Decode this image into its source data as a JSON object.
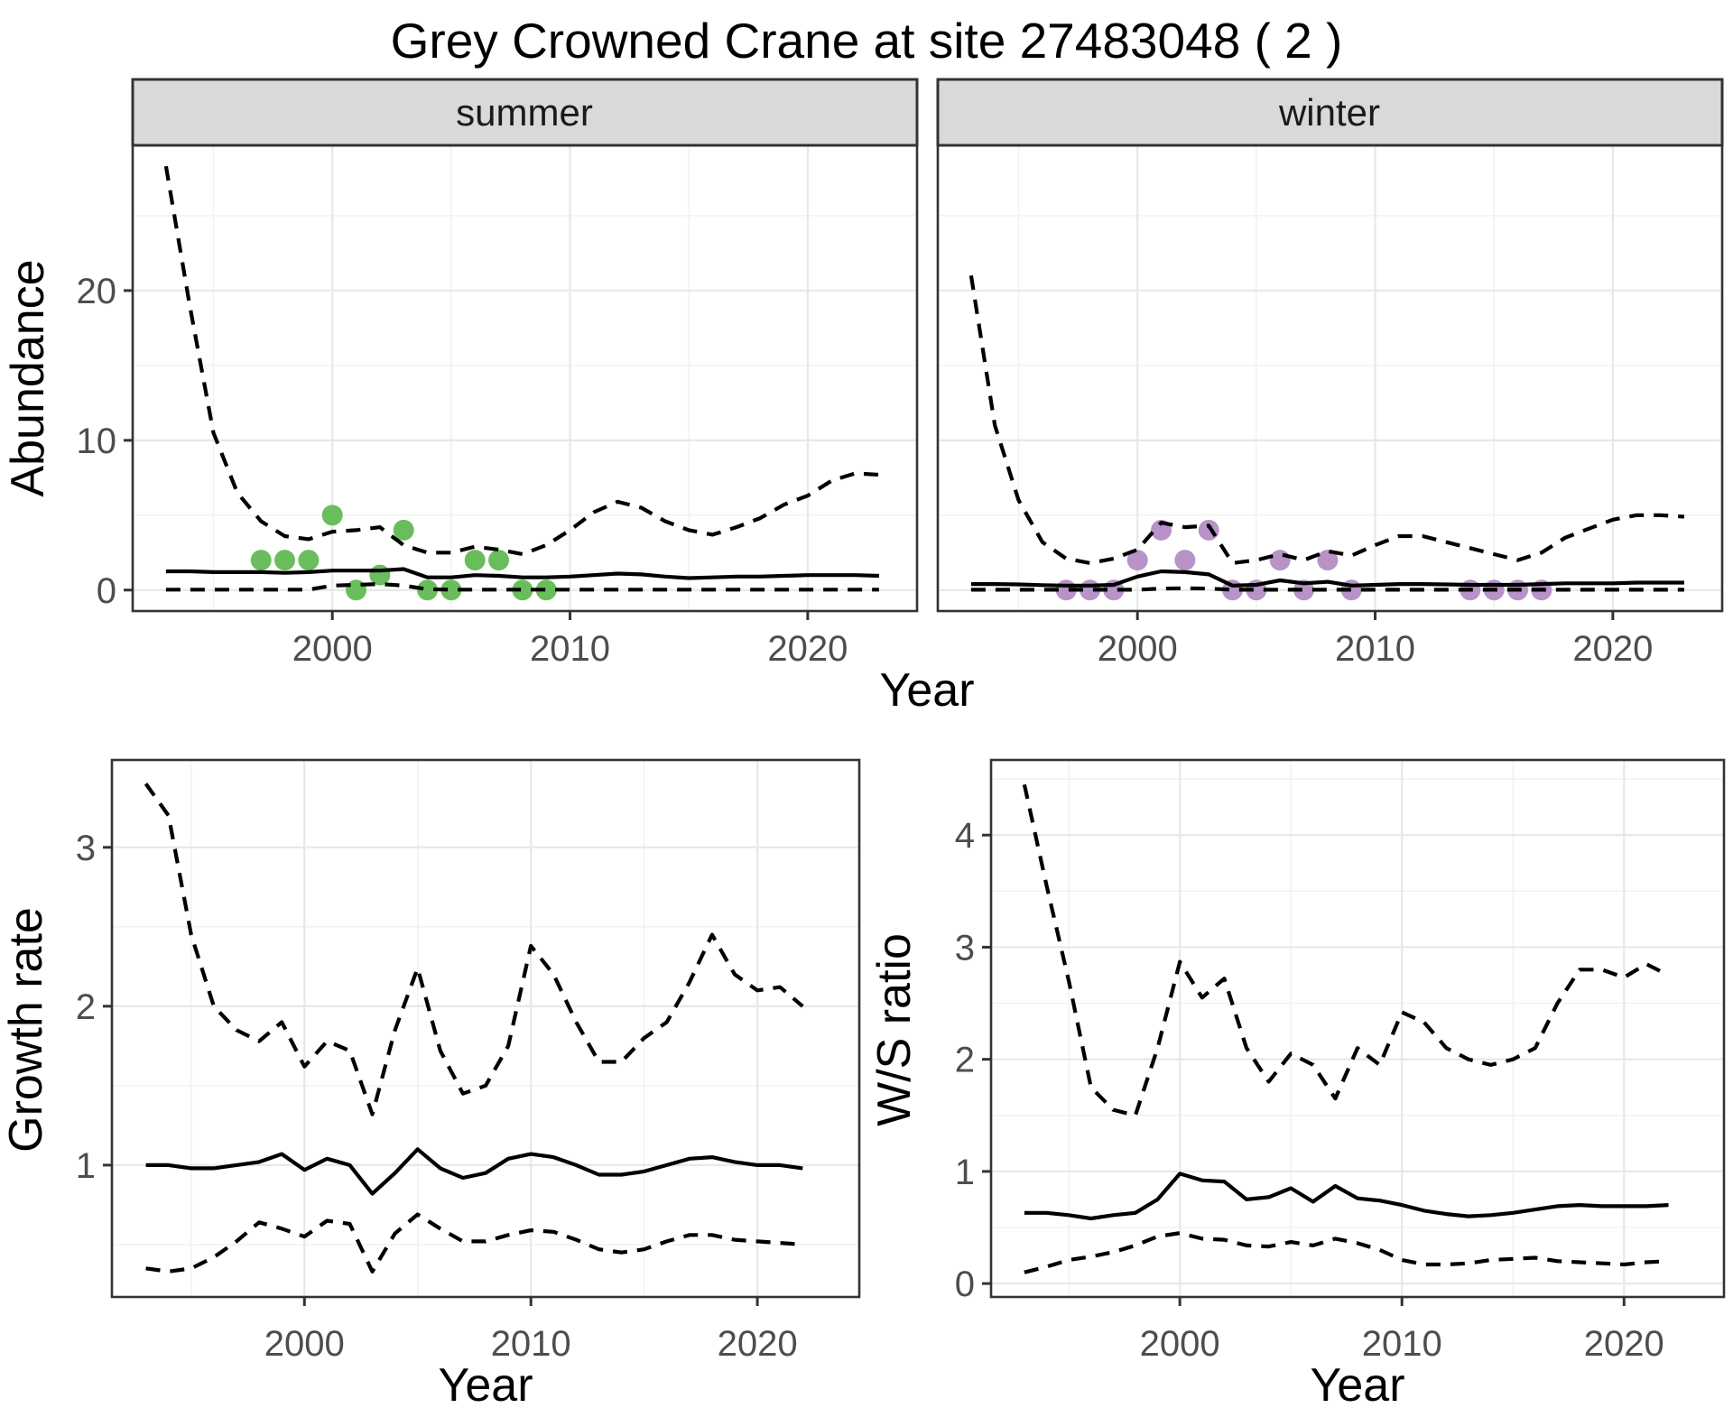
{
  "title": "Grey Crowned Crane at site 27483048 ( 2 )",
  "labels": {
    "y_abundance": "Abundance",
    "y_growth": "Growth rate",
    "y_ws": "W/S ratio",
    "x_year": "Year",
    "strip_summer": "summer",
    "strip_winter": "winter"
  },
  "theme": {
    "summer_point_color": "#6ABD5C",
    "winter_point_color": "#B793C8",
    "line_color": "#000000",
    "strip_fill": "#D9D9D9",
    "grid_major_color": "#E8E8E8",
    "grid_minor_color": "#F1F1F1",
    "axis_color": "#333333",
    "tick_label_color": "#4D4D4D",
    "panel_bg": "#FFFFFF"
  },
  "chart_data": [
    {
      "id": "abundance-summer",
      "type": "line",
      "facet": "summer",
      "ylabel": "Abundance",
      "xlabel": "Year",
      "x": [
        1993,
        1994,
        1995,
        1996,
        1997,
        1998,
        1999,
        2000,
        2001,
        2002,
        2003,
        2004,
        2005,
        2006,
        2007,
        2008,
        2009,
        2010,
        2011,
        2012,
        2013,
        2014,
        2015,
        2016,
        2017,
        2018,
        2019,
        2020,
        2021,
        2022,
        2023
      ],
      "series": [
        {
          "name": "ci-upper",
          "style": "dashed",
          "values": [
            28.3,
            19,
            10.5,
            6.5,
            4.6,
            3.6,
            3.4,
            3.9,
            4.0,
            4.2,
            3.0,
            2.5,
            2.5,
            2.9,
            2.7,
            2.4,
            3.0,
            4.0,
            5.2,
            5.9,
            5.5,
            4.6,
            4.0,
            3.7,
            4.2,
            4.8,
            5.7,
            6.3,
            7.3,
            7.8,
            7.7
          ]
        },
        {
          "name": "median",
          "style": "solid",
          "values": [
            1.25,
            1.25,
            1.2,
            1.2,
            1.2,
            1.15,
            1.2,
            1.3,
            1.3,
            1.3,
            1.4,
            0.85,
            0.85,
            1.0,
            0.95,
            0.85,
            0.85,
            0.9,
            1.0,
            1.1,
            1.05,
            0.9,
            0.8,
            0.85,
            0.9,
            0.9,
            0.95,
            1.0,
            1.0,
            1.0,
            0.95
          ]
        },
        {
          "name": "ci-lower",
          "style": "dashed",
          "values": [
            0.03,
            0.03,
            0.03,
            0.03,
            0.03,
            0.03,
            0.03,
            0.3,
            0.35,
            0.4,
            0.3,
            0.06,
            0.03,
            0.03,
            0.03,
            0.03,
            0.03,
            0.03,
            0.03,
            0.03,
            0.03,
            0.03,
            0.03,
            0.03,
            0.03,
            0.03,
            0.03,
            0.03,
            0.03,
            0.03,
            0.03
          ]
        }
      ],
      "points": {
        "name": "observed-counts",
        "color": "#6ABD5C",
        "x": [
          1997,
          1998,
          1999,
          2000,
          2001,
          2002,
          2003,
          2004,
          2005,
          2006,
          2007,
          2008,
          2009
        ],
        "y": [
          2,
          2,
          2,
          5,
          0,
          1,
          4,
          0,
          0,
          2,
          2,
          0,
          0
        ]
      },
      "xlim": [
        1991.6,
        2024.6
      ],
      "ylim": [
        -1.4,
        29.7
      ],
      "xticks": [
        2000,
        2010,
        2020
      ],
      "yticks": [
        0,
        10,
        20
      ],
      "xminor": [
        1995,
        2005,
        2015
      ],
      "yminor": [
        5,
        15,
        25
      ],
      "axes": {
        "left": true,
        "bottom": true
      },
      "grid": true,
      "legend": "none"
    },
    {
      "id": "abundance-winter",
      "type": "line",
      "facet": "winter",
      "ylabel": "Abundance",
      "xlabel": "Year",
      "x": [
        1993,
        1994,
        1995,
        1996,
        1997,
        1998,
        1999,
        2000,
        2001,
        2002,
        2003,
        2004,
        2005,
        2006,
        2007,
        2008,
        2009,
        2010,
        2011,
        2012,
        2013,
        2014,
        2015,
        2016,
        2017,
        2018,
        2019,
        2020,
        2021,
        2022,
        2023
      ],
      "series": [
        {
          "name": "ci-upper",
          "style": "dashed",
          "values": [
            21,
            11,
            6,
            3.2,
            2.1,
            1.8,
            2.1,
            2.7,
            4.5,
            4.2,
            4.3,
            1.8,
            2.0,
            2.4,
            2.0,
            2.6,
            2.3,
            3.0,
            3.6,
            3.6,
            3.2,
            2.8,
            2.4,
            2.0,
            2.5,
            3.5,
            4.1,
            4.7,
            5.0,
            5.0,
            4.9
          ]
        },
        {
          "name": "median",
          "style": "solid",
          "values": [
            0.4,
            0.4,
            0.38,
            0.33,
            0.3,
            0.3,
            0.35,
            0.9,
            1.25,
            1.2,
            1.05,
            0.3,
            0.35,
            0.65,
            0.45,
            0.55,
            0.3,
            0.35,
            0.4,
            0.4,
            0.38,
            0.35,
            0.35,
            0.35,
            0.4,
            0.45,
            0.45,
            0.45,
            0.5,
            0.5,
            0.5
          ]
        },
        {
          "name": "ci-lower",
          "style": "dashed",
          "values": [
            0.02,
            0.02,
            0.02,
            0.02,
            0.02,
            0.02,
            0.02,
            0.02,
            0.1,
            0.12,
            0.1,
            0.02,
            0.02,
            0.02,
            0.02,
            0.02,
            0.02,
            0.02,
            0.02,
            0.02,
            0.02,
            0.02,
            0.02,
            0.02,
            0.02,
            0.02,
            0.02,
            0.02,
            0.02,
            0.02,
            0.02
          ]
        }
      ],
      "points": {
        "name": "observed-counts",
        "color": "#B793C8",
        "x": [
          1997,
          1998,
          1999,
          2000,
          2001,
          2002,
          2003,
          2004,
          2005,
          2006,
          2007,
          2008,
          2009,
          2014,
          2015,
          2016,
          2017
        ],
        "y": [
          0,
          0,
          0,
          2,
          4,
          2,
          4,
          0,
          0,
          2,
          0,
          2,
          0,
          0,
          0,
          0,
          0
        ]
      },
      "xlim": [
        1991.6,
        2024.6
      ],
      "ylim": [
        -1.4,
        29.7
      ],
      "xticks": [
        2000,
        2010,
        2020
      ],
      "yticks": [
        0,
        10,
        20
      ],
      "xminor": [
        1995,
        2005,
        2015
      ],
      "yminor": [
        5,
        15,
        25
      ],
      "axes": {
        "left": false,
        "bottom": true
      },
      "grid": true,
      "legend": "none"
    },
    {
      "id": "growth-rate",
      "type": "line",
      "facet": null,
      "ylabel": "Growth rate",
      "xlabel": "Year",
      "x": [
        1993,
        1994,
        1995,
        1996,
        1997,
        1998,
        1999,
        2000,
        2001,
        2002,
        2003,
        2004,
        2005,
        2006,
        2007,
        2008,
        2009,
        2010,
        2011,
        2012,
        2013,
        2014,
        2015,
        2016,
        2017,
        2018,
        2019,
        2020,
        2021,
        2022
      ],
      "series": [
        {
          "name": "ci-upper",
          "style": "dashed",
          "values": [
            3.4,
            3.2,
            2.45,
            2.0,
            1.85,
            1.78,
            1.9,
            1.62,
            1.78,
            1.72,
            1.32,
            1.85,
            2.24,
            1.72,
            1.45,
            1.5,
            1.75,
            2.38,
            2.2,
            1.9,
            1.65,
            1.65,
            1.8,
            1.9,
            2.15,
            2.45,
            2.2,
            2.1,
            2.12,
            2.0
          ]
        },
        {
          "name": "median",
          "style": "solid",
          "values": [
            1.0,
            1.0,
            0.98,
            0.98,
            1.0,
            1.02,
            1.07,
            0.97,
            1.04,
            1.0,
            0.82,
            0.95,
            1.1,
            0.98,
            0.92,
            0.95,
            1.04,
            1.07,
            1.05,
            1.0,
            0.94,
            0.94,
            0.96,
            1.0,
            1.04,
            1.05,
            1.02,
            1.0,
            1.0,
            0.98
          ]
        },
        {
          "name": "ci-lower",
          "style": "dashed",
          "values": [
            0.35,
            0.33,
            0.35,
            0.42,
            0.52,
            0.64,
            0.6,
            0.55,
            0.65,
            0.63,
            0.33,
            0.57,
            0.69,
            0.6,
            0.52,
            0.52,
            0.56,
            0.59,
            0.58,
            0.53,
            0.47,
            0.45,
            0.47,
            0.52,
            0.56,
            0.56,
            0.53,
            0.52,
            0.51,
            0.5
          ]
        }
      ],
      "points": null,
      "xlim": [
        1991.5,
        2024.5
      ],
      "ylim": [
        0.17,
        3.55
      ],
      "xticks": [
        2000,
        2010,
        2020
      ],
      "yticks": [
        1,
        2,
        3
      ],
      "xminor": [
        1995,
        2005,
        2015
      ],
      "yminor": [
        0.5,
        1.5,
        2.5
      ],
      "axes": {
        "left": true,
        "bottom": true
      },
      "grid": true,
      "legend": "none"
    },
    {
      "id": "ws-ratio",
      "type": "line",
      "facet": null,
      "ylabel": "W/S ratio",
      "xlabel": "Year",
      "x": [
        1993,
        1994,
        1995,
        1996,
        1997,
        1998,
        1999,
        2000,
        2001,
        2002,
        2003,
        2004,
        2005,
        2006,
        2007,
        2008,
        2009,
        2010,
        2011,
        2012,
        2013,
        2014,
        2015,
        2016,
        2017,
        2018,
        2019,
        2020,
        2021,
        2022
      ],
      "series": [
        {
          "name": "ci-upper",
          "style": "dashed",
          "values": [
            4.45,
            3.55,
            2.7,
            1.75,
            1.55,
            1.5,
            2.1,
            2.87,
            2.55,
            2.72,
            2.1,
            1.8,
            2.05,
            1.95,
            1.65,
            2.1,
            1.95,
            2.42,
            2.33,
            2.1,
            2.0,
            1.95,
            2.0,
            2.1,
            2.5,
            2.8,
            2.8,
            2.73,
            2.85,
            2.75
          ]
        },
        {
          "name": "median",
          "style": "solid",
          "values": [
            0.63,
            0.63,
            0.61,
            0.58,
            0.61,
            0.63,
            0.75,
            0.98,
            0.92,
            0.91,
            0.75,
            0.77,
            0.85,
            0.73,
            0.87,
            0.76,
            0.74,
            0.7,
            0.65,
            0.62,
            0.6,
            0.61,
            0.63,
            0.66,
            0.69,
            0.7,
            0.69,
            0.69,
            0.69,
            0.7
          ]
        },
        {
          "name": "ci-lower",
          "style": "dashed",
          "values": [
            0.1,
            0.15,
            0.21,
            0.24,
            0.28,
            0.34,
            0.42,
            0.45,
            0.4,
            0.39,
            0.34,
            0.33,
            0.37,
            0.34,
            0.4,
            0.36,
            0.3,
            0.21,
            0.17,
            0.17,
            0.18,
            0.21,
            0.22,
            0.23,
            0.2,
            0.19,
            0.18,
            0.17,
            0.19,
            0.2
          ]
        }
      ],
      "points": null,
      "xlim": [
        1991.5,
        2024.5
      ],
      "ylim": [
        -0.12,
        4.67
      ],
      "xticks": [
        2000,
        2010,
        2020
      ],
      "yticks": [
        0,
        1,
        2,
        3,
        4
      ],
      "xminor": [
        1995,
        2005,
        2015
      ],
      "yminor": [
        0.5,
        1.5,
        2.5,
        3.5,
        4.5
      ],
      "axes": {
        "left": true,
        "bottom": true
      },
      "grid": true,
      "legend": "none"
    }
  ]
}
